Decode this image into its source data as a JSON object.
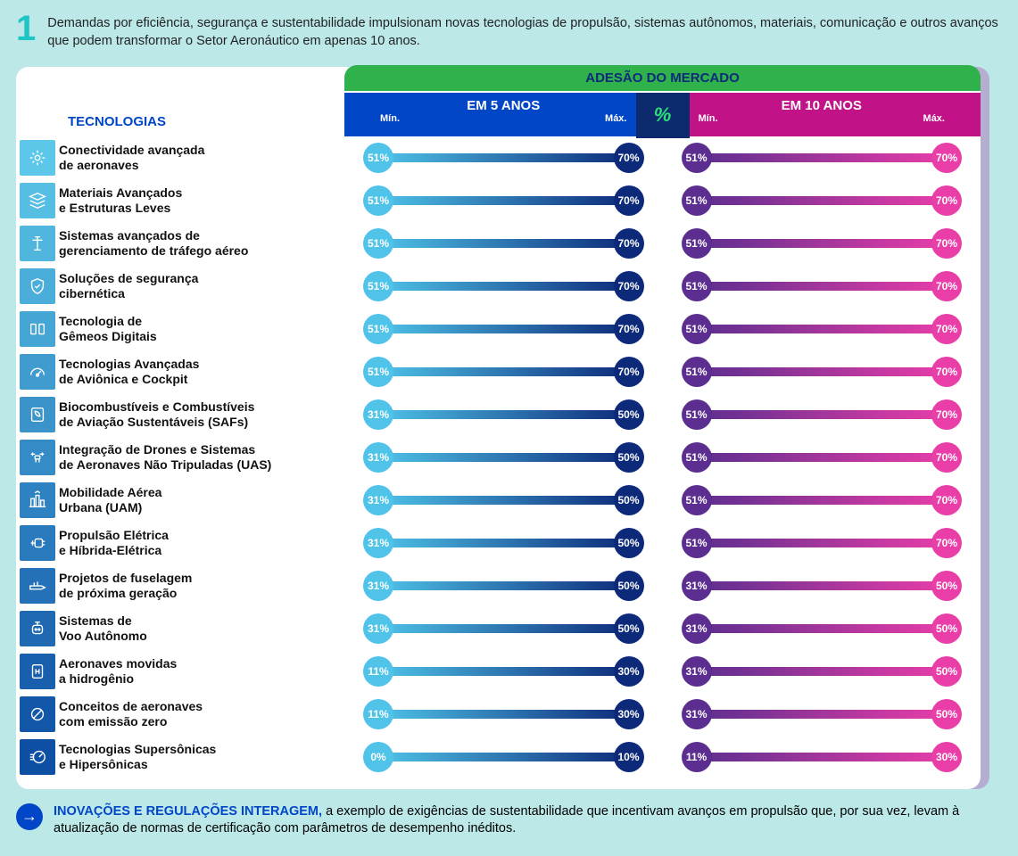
{
  "colors": {
    "page_bg": "#bce8e8",
    "panel_bg": "#ffffff",
    "green": "#2fb24c",
    "blue5": "#0046c7",
    "pink10": "#c21288",
    "darknavy": "#0d2a7a",
    "cyan": "#4fc3e8",
    "purple": "#5b2e8f",
    "magenta": "#e93da8",
    "pct_text": "#2fe07a",
    "number_color": "#1fc4c4"
  },
  "number": "1",
  "intro": "Demandas por eficiência, segurança e sustentabilidade impulsionam novas tecnologias de propulsão, sistemas autônomos, materiais, comunicação e outros avanços que podem transformar o Setor Aeronáutico em apenas 10 anos.",
  "headers": {
    "market": "ADESÃO DO MERCADO",
    "tech": "TECNOLOGIAS",
    "y5": "EM 5 ANOS",
    "y10": "EM 10 ANOS",
    "min": "Mín.",
    "max": "Máx.",
    "pct": "%"
  },
  "icon_gradient": {
    "top": "#5cc7e8",
    "bottom": "#0d4fa3"
  },
  "rows": [
    {
      "icon": "connectivity-icon",
      "label": "Conectividade avançada\nde aeronaves",
      "y5": {
        "min": 51,
        "max": 70
      },
      "y10": {
        "min": 51,
        "max": 70
      }
    },
    {
      "icon": "layers-icon",
      "label": "Materiais Avançados\ne Estruturas Leves",
      "y5": {
        "min": 51,
        "max": 70
      },
      "y10": {
        "min": 51,
        "max": 70
      }
    },
    {
      "icon": "tower-icon",
      "label": "Sistemas avançados de\ngerenciamento de tráfego aéreo",
      "y5": {
        "min": 51,
        "max": 70
      },
      "y10": {
        "min": 51,
        "max": 70
      }
    },
    {
      "icon": "shield-icon",
      "label": "Soluções de segurança\ncibernética",
      "y5": {
        "min": 51,
        "max": 70
      },
      "y10": {
        "min": 51,
        "max": 70
      }
    },
    {
      "icon": "twins-icon",
      "label": "Tecnologia de\nGêmeos Digitais",
      "y5": {
        "min": 51,
        "max": 70
      },
      "y10": {
        "min": 51,
        "max": 70
      }
    },
    {
      "icon": "gauge-icon",
      "label": "Tecnologias Avançadas\nde Aviônica e Cockpit",
      "y5": {
        "min": 51,
        "max": 70
      },
      "y10": {
        "min": 51,
        "max": 70
      }
    },
    {
      "icon": "leaf-icon",
      "label": "Biocombustíveis e Combustíveis\nde Aviação Sustentáveis (SAFs)",
      "y5": {
        "min": 31,
        "max": 50
      },
      "y10": {
        "min": 51,
        "max": 70
      }
    },
    {
      "icon": "drone-icon",
      "label": "Integração de Drones e Sistemas\nde Aeronaves Não Tripuladas (UAS)",
      "y5": {
        "min": 31,
        "max": 50
      },
      "y10": {
        "min": 51,
        "max": 70
      }
    },
    {
      "icon": "city-icon",
      "label": "Mobilidade Aérea\nUrbana (UAM)",
      "y5": {
        "min": 31,
        "max": 50
      },
      "y10": {
        "min": 51,
        "max": 70
      }
    },
    {
      "icon": "plug-icon",
      "label": "Propulsão Elétrica\ne Híbrida-Elétrica",
      "y5": {
        "min": 31,
        "max": 50
      },
      "y10": {
        "min": 51,
        "max": 70
      }
    },
    {
      "icon": "fuselage-icon",
      "label": "Projetos de fuselagem\nde próxima geração",
      "y5": {
        "min": 31,
        "max": 50
      },
      "y10": {
        "min": 31,
        "max": 50
      }
    },
    {
      "icon": "robot-icon",
      "label": "Sistemas de\nVoo Autônomo",
      "y5": {
        "min": 31,
        "max": 50
      },
      "y10": {
        "min": 31,
        "max": 50
      }
    },
    {
      "icon": "hydrogen-icon",
      "label": "Aeronaves movidas\na hidrogênio",
      "y5": {
        "min": 11,
        "max": 30
      },
      "y10": {
        "min": 31,
        "max": 50
      }
    },
    {
      "icon": "zero-icon",
      "label": "Conceitos de aeronaves\ncom emissão zero",
      "y5": {
        "min": 11,
        "max": 30
      },
      "y10": {
        "min": 31,
        "max": 50
      }
    },
    {
      "icon": "speed-icon",
      "label": "Tecnologias Supersônicas\ne Hipersônicas",
      "y5": {
        "min": 0,
        "max": 10
      },
      "y10": {
        "min": 11,
        "max": 30
      }
    }
  ],
  "footer": {
    "lead": "INOVAÇÕES E REGULAÇÕES INTERAGEM,",
    "rest": " a exemplo de exigências de sustentabilidade que incentivam avanços em propulsão que, por sua vez, levam à atualização de normas de certificação com parâmetros de desempenho inéditos."
  },
  "bar_scale": {
    "domain_min": 0,
    "domain_max": 100
  }
}
